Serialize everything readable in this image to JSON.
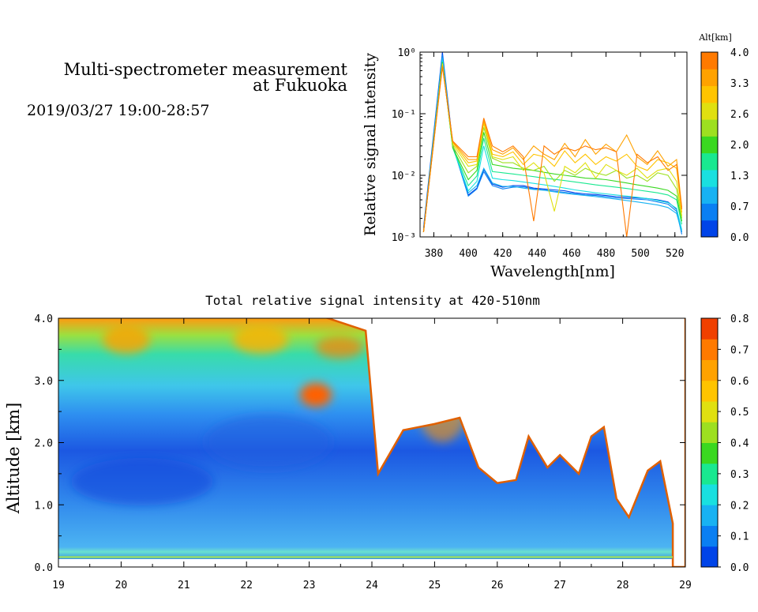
{
  "header": {
    "title_line1": "Multi-spectrometer measurement",
    "title_line2": "at Fukuoka",
    "date_range": "2019/03/27 19:00-28:57"
  },
  "chart_data": [
    {
      "type": "line",
      "title": "",
      "xlabel": "Wavelength[nm]",
      "ylabel": "Relative signal intensity",
      "xlim": [
        372,
        527
      ],
      "ylim": [
        0.001,
        1
      ],
      "yscale": "log",
      "x_ticks": [
        "380",
        "400",
        "420",
        "440",
        "460",
        "480",
        "500",
        "520"
      ],
      "y_ticks": [
        "10⁻³",
        "10⁻²",
        "10⁻¹",
        "10⁰"
      ],
      "colorbar": {
        "title": "Alt[km]",
        "labels": [
          "0.0",
          "0.7",
          "1.3",
          "2.0",
          "2.6",
          "3.3",
          "4.0"
        ],
        "colors": [
          "#0044e8",
          "#0a7ff2",
          "#18b2f2",
          "#19e0e0",
          "#19e890",
          "#3ad820",
          "#9de020",
          "#e0e010",
          "#ffc400",
          "#ffa200",
          "#ff7a00"
        ]
      },
      "x": [
        374,
        385,
        391,
        400,
        405,
        409,
        414,
        420,
        426,
        432,
        438,
        444,
        450,
        456,
        462,
        468,
        474,
        480,
        486,
        492,
        498,
        504,
        510,
        516,
        521,
        524
      ],
      "series": [
        {
          "color": "#0044e8",
          "values": [
            0.0014,
            1.0,
            0.032,
            0.0048,
            0.0062,
            0.0125,
            0.0072,
            0.0064,
            0.0068,
            0.0068,
            0.0062,
            0.006,
            0.0058,
            0.0056,
            0.0052,
            0.005,
            0.0049,
            0.0047,
            0.0045,
            0.0044,
            0.0043,
            0.0042,
            0.004,
            0.0037,
            0.0028,
            0.0012
          ]
        },
        {
          "color": "#0a7ff2",
          "values": [
            0.0013,
            0.9,
            0.03,
            0.0046,
            0.006,
            0.0115,
            0.0068,
            0.006,
            0.0064,
            0.0065,
            0.006,
            0.0058,
            0.0055,
            0.0053,
            0.005,
            0.0048,
            0.0047,
            0.0045,
            0.0043,
            0.0042,
            0.0041,
            0.004,
            0.0037,
            0.0034,
            0.0026,
            0.0011
          ]
        },
        {
          "color": "#18b2f2",
          "values": [
            0.0012,
            0.82,
            0.03,
            0.0052,
            0.0068,
            0.013,
            0.0075,
            0.0066,
            0.0066,
            0.0062,
            0.0059,
            0.0057,
            0.0054,
            0.0051,
            0.0049,
            0.0047,
            0.0045,
            0.0043,
            0.0041,
            0.0039,
            0.0037,
            0.0035,
            0.0033,
            0.003,
            0.0024,
            0.0012
          ]
        },
        {
          "color": "#19e0e0",
          "values": [
            0.0012,
            0.75,
            0.028,
            0.0056,
            0.008,
            0.03,
            0.009,
            0.0085,
            0.0082,
            0.0078,
            0.0074,
            0.007,
            0.0066,
            0.0062,
            0.0058,
            0.0055,
            0.0052,
            0.005,
            0.0048,
            0.0046,
            0.0044,
            0.0042,
            0.0039,
            0.0036,
            0.0029,
            0.0013
          ]
        },
        {
          "color": "#19e890",
          "values": [
            0.0012,
            0.7,
            0.028,
            0.0068,
            0.0098,
            0.04,
            0.0115,
            0.011,
            0.0105,
            0.01,
            0.0095,
            0.009,
            0.0086,
            0.0082,
            0.0078,
            0.0074,
            0.007,
            0.0067,
            0.0064,
            0.0061,
            0.0058,
            0.0055,
            0.0052,
            0.0048,
            0.004,
            0.0016
          ]
        },
        {
          "color": "#3ad820",
          "values": [
            0.0012,
            0.68,
            0.028,
            0.0085,
            0.012,
            0.05,
            0.015,
            0.014,
            0.013,
            0.0125,
            0.012,
            0.0112,
            0.0105,
            0.01,
            0.0095,
            0.009,
            0.0088,
            0.0085,
            0.008,
            0.0075,
            0.007,
            0.0066,
            0.0062,
            0.0057,
            0.0046,
            0.0018
          ]
        },
        {
          "color": "#9de020",
          "values": [
            0.0012,
            0.66,
            0.03,
            0.011,
            0.014,
            0.06,
            0.019,
            0.016,
            0.016,
            0.013,
            0.012,
            0.014,
            0.008,
            0.012,
            0.01,
            0.013,
            0.011,
            0.01,
            0.012,
            0.009,
            0.01,
            0.008,
            0.011,
            0.01,
            0.006,
            0.002
          ]
        },
        {
          "color": "#e0e010",
          "values": [
            0.0012,
            0.64,
            0.032,
            0.014,
            0.015,
            0.07,
            0.02,
            0.018,
            0.02,
            0.012,
            0.016,
            0.011,
            0.0026,
            0.014,
            0.011,
            0.016,
            0.009,
            0.015,
            0.012,
            0.01,
            0.013,
            0.009,
            0.012,
            0.013,
            0.008,
            0.0022
          ]
        },
        {
          "color": "#ffc400",
          "values": [
            0.0012,
            0.62,
            0.034,
            0.016,
            0.017,
            0.075,
            0.022,
            0.02,
            0.024,
            0.015,
            0.022,
            0.02,
            0.014,
            0.025,
            0.016,
            0.022,
            0.015,
            0.02,
            0.017,
            0.022,
            0.014,
            0.012,
            0.018,
            0.016,
            0.013,
            0.0025
          ]
        },
        {
          "color": "#ffa200",
          "values": [
            0.0012,
            0.6,
            0.035,
            0.018,
            0.018,
            0.08,
            0.026,
            0.022,
            0.028,
            0.018,
            0.03,
            0.022,
            0.018,
            0.033,
            0.02,
            0.038,
            0.022,
            0.032,
            0.024,
            0.045,
            0.02,
            0.015,
            0.025,
            0.014,
            0.018,
            0.003
          ]
        },
        {
          "color": "#ff7a00",
          "values": [
            0.0012,
            0.58,
            0.036,
            0.02,
            0.02,
            0.085,
            0.03,
            0.024,
            0.03,
            0.02,
            0.0018,
            0.03,
            0.022,
            0.028,
            0.025,
            0.03,
            0.026,
            0.028,
            0.024,
            0.001,
            0.022,
            0.016,
            0.02,
            0.012,
            0.015,
            0.0028
          ]
        }
      ]
    },
    {
      "type": "heatmap",
      "title": "Total relative signal intensity at 420-510nm",
      "xlabel": "",
      "ylabel": "Altitude [km]",
      "xlim": [
        19,
        29
      ],
      "ylim": [
        0,
        4
      ],
      "x_ticks": [
        "19",
        "20",
        "21",
        "22",
        "23",
        "24",
        "25",
        "26",
        "27",
        "28",
        "29"
      ],
      "y_ticks": [
        "0.0",
        "1.0",
        "2.0",
        "3.0",
        "4.0"
      ],
      "colorbar": {
        "title": "",
        "labels": [
          "0.0",
          "0.1",
          "0.2",
          "0.3",
          "0.4",
          "0.5",
          "0.6",
          "0.7",
          "0.8"
        ],
        "colors": [
          "#0044e8",
          "#0a7ff2",
          "#18b2f2",
          "#19e0e0",
          "#19e890",
          "#3ad820",
          "#9de020",
          "#e0e010",
          "#ffc400",
          "#ffa200",
          "#ff7a00",
          "#f04000"
        ]
      },
      "cloud_base_km": {
        "hours": [
          19,
          20,
          21,
          22,
          23,
          23.9,
          24.1,
          24.5,
          25,
          25.4,
          25.7,
          26,
          26.3,
          26.5,
          26.8,
          27,
          27.3,
          27.5,
          27.7,
          27.9,
          28.1,
          28.4,
          28.6,
          28.8
        ],
        "values": [
          4.1,
          4.1,
          4.1,
          4.1,
          4.1,
          3.8,
          1.5,
          2.2,
          2.3,
          2.4,
          1.6,
          1.35,
          1.4,
          2.1,
          1.6,
          1.8,
          1.5,
          2.1,
          2.25,
          1.1,
          0.8,
          1.55,
          1.7,
          0.7
        ]
      }
    }
  ]
}
